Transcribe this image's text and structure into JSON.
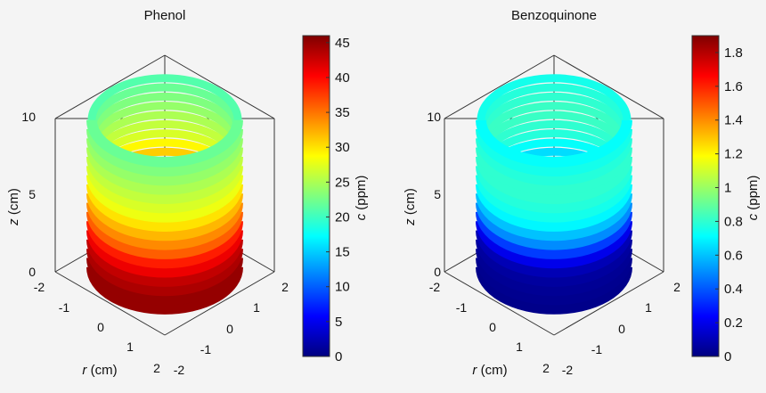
{
  "colors": {
    "background": "#f4f4f4",
    "axis": "#333333",
    "colormap": [
      "#00007f",
      "#0000ff",
      "#007fff",
      "#00ffff",
      "#7fff7f",
      "#ffff00",
      "#ff7f00",
      "#ff0000",
      "#7f0000"
    ]
  },
  "chart_data": [
    {
      "type": "3d-ring-stack",
      "title": "Phenol",
      "colorbar": {
        "label_var": "c",
        "label_unit": " (ppm)",
        "range": [
          0,
          46
        ],
        "ticks": [
          0,
          5,
          10,
          15,
          20,
          25,
          30,
          35,
          40,
          45
        ],
        "tick_labels": [
          "0",
          "5",
          "10",
          "15",
          "20",
          "25",
          "30",
          "35",
          "40",
          "45"
        ]
      },
      "z_axis": {
        "label_var": "z",
        "label_unit": " (cm)",
        "range": [
          0,
          10
        ],
        "tick_labels": [
          "0",
          "5",
          "10"
        ]
      },
      "r_axis": {
        "label_var": "r",
        "label_unit": " (cm)",
        "range": [
          -2,
          2
        ],
        "tick_labels": [
          "-2",
          "-1",
          "0",
          "1",
          "2"
        ]
      },
      "r2_axis": {
        "range": [
          -2,
          2
        ],
        "tick_labels": [
          "-2",
          "-1",
          "0",
          "1",
          "2"
        ]
      },
      "rings": [
        {
          "z": 0.3,
          "c_front": 45,
          "c_back": 45
        },
        {
          "z": 0.9,
          "c_front": 45,
          "c_back": 45
        },
        {
          "z": 1.5,
          "c_front": 44,
          "c_back": 44
        },
        {
          "z": 2.1,
          "c_front": 43,
          "c_back": 42
        },
        {
          "z": 2.7,
          "c_front": 41,
          "c_back": 40
        },
        {
          "z": 3.3,
          "c_front": 39,
          "c_back": 38
        },
        {
          "z": 3.9,
          "c_front": 36,
          "c_back": 36
        },
        {
          "z": 4.5,
          "c_front": 34,
          "c_back": 33
        },
        {
          "z": 5.1,
          "c_front": 32,
          "c_back": 31
        },
        {
          "z": 5.7,
          "c_front": 30,
          "c_back": 29
        },
        {
          "z": 6.3,
          "c_front": 28,
          "c_back": 27
        },
        {
          "z": 6.9,
          "c_front": 27,
          "c_back": 26
        },
        {
          "z": 7.5,
          "c_front": 26,
          "c_back": 25
        },
        {
          "z": 8.1,
          "c_front": 25,
          "c_back": 24
        },
        {
          "z": 8.7,
          "c_front": 24,
          "c_back": 23
        },
        {
          "z": 9.3,
          "c_front": 23,
          "c_back": 22
        },
        {
          "z": 9.9,
          "c_front": 22,
          "c_back": 21
        }
      ]
    },
    {
      "type": "3d-ring-stack",
      "title": "Benzoquinone",
      "colorbar": {
        "label_var": "c",
        "label_unit": " (ppm)",
        "range": [
          0,
          1.9
        ],
        "ticks": [
          0,
          0.2,
          0.4,
          0.6,
          0.8,
          1.0,
          1.2,
          1.4,
          1.6,
          1.8
        ],
        "tick_labels": [
          "0",
          "0.2",
          "0.4",
          "0.6",
          "0.8",
          "1",
          "1.2",
          "1.4",
          "1.6",
          "1.8"
        ]
      },
      "z_axis": {
        "label_var": "z",
        "label_unit": " (cm)",
        "range": [
          0,
          10
        ],
        "tick_labels": [
          "0",
          "5",
          "10"
        ]
      },
      "r_axis": {
        "label_var": "r",
        "label_unit": " (cm)",
        "range": [
          -2,
          2
        ],
        "tick_labels": [
          "-2",
          "-1",
          "0",
          "1",
          "2"
        ]
      },
      "r2_axis": {
        "range": [
          -2,
          2
        ],
        "tick_labels": [
          "-2",
          "-1",
          "0",
          "1",
          "2"
        ]
      },
      "rings": [
        {
          "z": 0.3,
          "c_front": 0.02,
          "c_back": 0.02
        },
        {
          "z": 0.9,
          "c_front": 0.03,
          "c_back": 0.03
        },
        {
          "z": 1.5,
          "c_front": 0.04,
          "c_back": 0.05
        },
        {
          "z": 2.1,
          "c_front": 0.06,
          "c_back": 0.08
        },
        {
          "z": 2.7,
          "c_front": 0.1,
          "c_back": 0.15
        },
        {
          "z": 3.3,
          "c_front": 0.2,
          "c_back": 0.3
        },
        {
          "z": 3.9,
          "c_front": 0.35,
          "c_back": 0.45
        },
        {
          "z": 4.5,
          "c_front": 0.5,
          "c_back": 0.55
        },
        {
          "z": 5.1,
          "c_front": 0.6,
          "c_back": 0.65
        },
        {
          "z": 5.7,
          "c_front": 0.7,
          "c_back": 0.72
        },
        {
          "z": 6.3,
          "c_front": 0.75,
          "c_back": 0.78
        },
        {
          "z": 6.9,
          "c_front": 0.78,
          "c_back": 0.8
        },
        {
          "z": 7.5,
          "c_front": 0.8,
          "c_back": 0.82
        },
        {
          "z": 8.1,
          "c_front": 0.8,
          "c_back": 0.82
        },
        {
          "z": 8.7,
          "c_front": 0.78,
          "c_back": 0.8
        },
        {
          "z": 9.3,
          "c_front": 0.75,
          "c_back": 0.78
        },
        {
          "z": 9.9,
          "c_front": 0.72,
          "c_back": 0.75
        }
      ]
    }
  ]
}
